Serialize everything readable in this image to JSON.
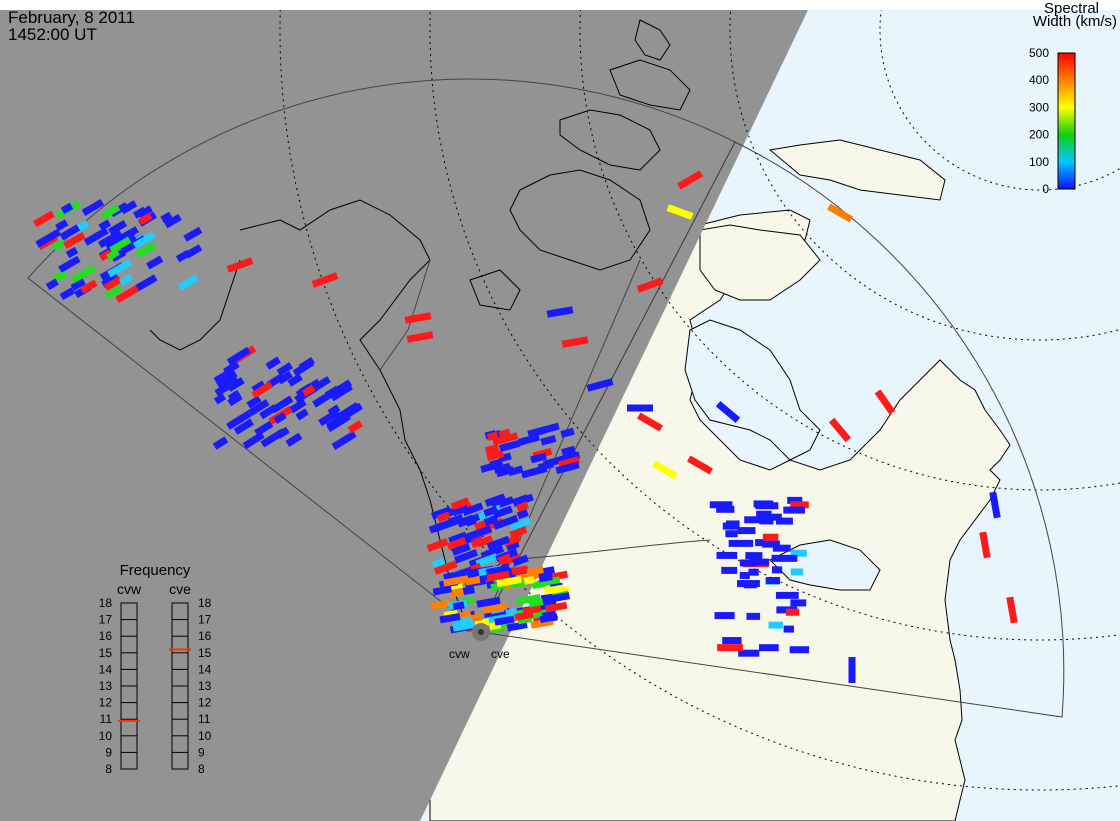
{
  "header": {
    "date": "February, 8 2011",
    "time": "1452:00 UT"
  },
  "colors": {
    "night": "#939393",
    "land": "#f8f8ea",
    "ocean": "#e9f5fc",
    "coast": "#000000"
  },
  "colorbar": {
    "title_line1": "Spectral",
    "title_line2": "Width (km/s)",
    "ticks": [
      "0",
      "100",
      "200",
      "300",
      "400",
      "500"
    ],
    "colors": [
      "#1010ff",
      "#00c8ff",
      "#10d010",
      "#ffff00",
      "#ff8000",
      "#ff0000"
    ]
  },
  "frequency_panel": {
    "title": "Frequency",
    "radars": [
      {
        "code": "cvw",
        "freq_mhz": 10.9,
        "marker_color": "#ff3000"
      },
      {
        "code": "cve",
        "freq_mhz": 15.2,
        "marker_color": "#ff3000"
      }
    ],
    "scale_labels": [
      "18",
      "17",
      "16",
      "15",
      "14",
      "13",
      "12",
      "11",
      "10",
      "9",
      "8"
    ]
  },
  "radar_sites": {
    "west_label": "cvw",
    "east_label": "cve"
  }
}
